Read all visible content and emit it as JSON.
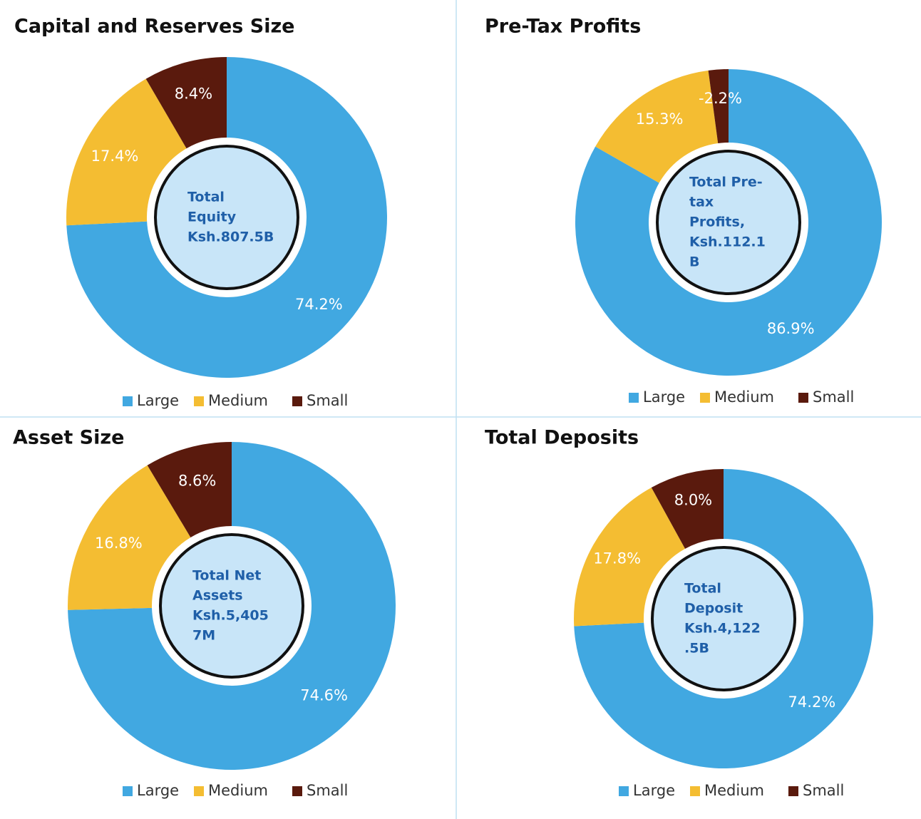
{
  "chart_data": [
    {
      "type": "pie",
      "title": "Capital and Reserves Size",
      "categories": [
        "Large",
        "Medium",
        "Small"
      ],
      "values": [
        74.2,
        17.4,
        8.4
      ],
      "value_labels": [
        "74.2%",
        "17.4%",
        "8.4%"
      ],
      "colors": [
        "#41a8e1",
        "#f4bd32",
        "#5a1a0d"
      ],
      "center_lines": [
        "Total",
        "Equity",
        "Ksh.807.5B"
      ],
      "legend": "bottom"
    },
    {
      "type": "pie",
      "title": "Pre-Tax Profits",
      "categories": [
        "Large",
        "Medium",
        "Small"
      ],
      "values": [
        86.9,
        15.3,
        -2.2
      ],
      "value_labels": [
        "86.9%",
        "15.3%",
        "-2.2%"
      ],
      "colors": [
        "#41a8e1",
        "#f4bd32",
        "#5a1a0d"
      ],
      "center_lines": [
        "Total Pre-",
        "tax",
        "Profits,",
        "Ksh.112.1",
        "B"
      ],
      "legend": "bottom"
    },
    {
      "type": "pie",
      "title": "Asset Size",
      "categories": [
        "Large",
        "Medium",
        "Small"
      ],
      "values": [
        74.6,
        16.8,
        8.6
      ],
      "value_labels": [
        "74.6%",
        "16.8%",
        "8.6%"
      ],
      "colors": [
        "#41a8e1",
        "#f4bd32",
        "#5a1a0d"
      ],
      "center_lines": [
        "Total Net",
        "Assets",
        "Ksh.5,405",
        "7M"
      ],
      "legend": "bottom"
    },
    {
      "type": "pie",
      "title": "Total Deposits",
      "categories": [
        "Large",
        "Medium",
        "Small"
      ],
      "values": [
        74.2,
        17.8,
        8.0
      ],
      "value_labels": [
        "74.2%",
        "17.8%",
        "8.0%"
      ],
      "colors": [
        "#41a8e1",
        "#f4bd32",
        "#5a1a0d"
      ],
      "center_lines": [
        "Total",
        "Deposit",
        "Ksh.4,122",
        ".5B"
      ],
      "legend": "bottom"
    }
  ]
}
